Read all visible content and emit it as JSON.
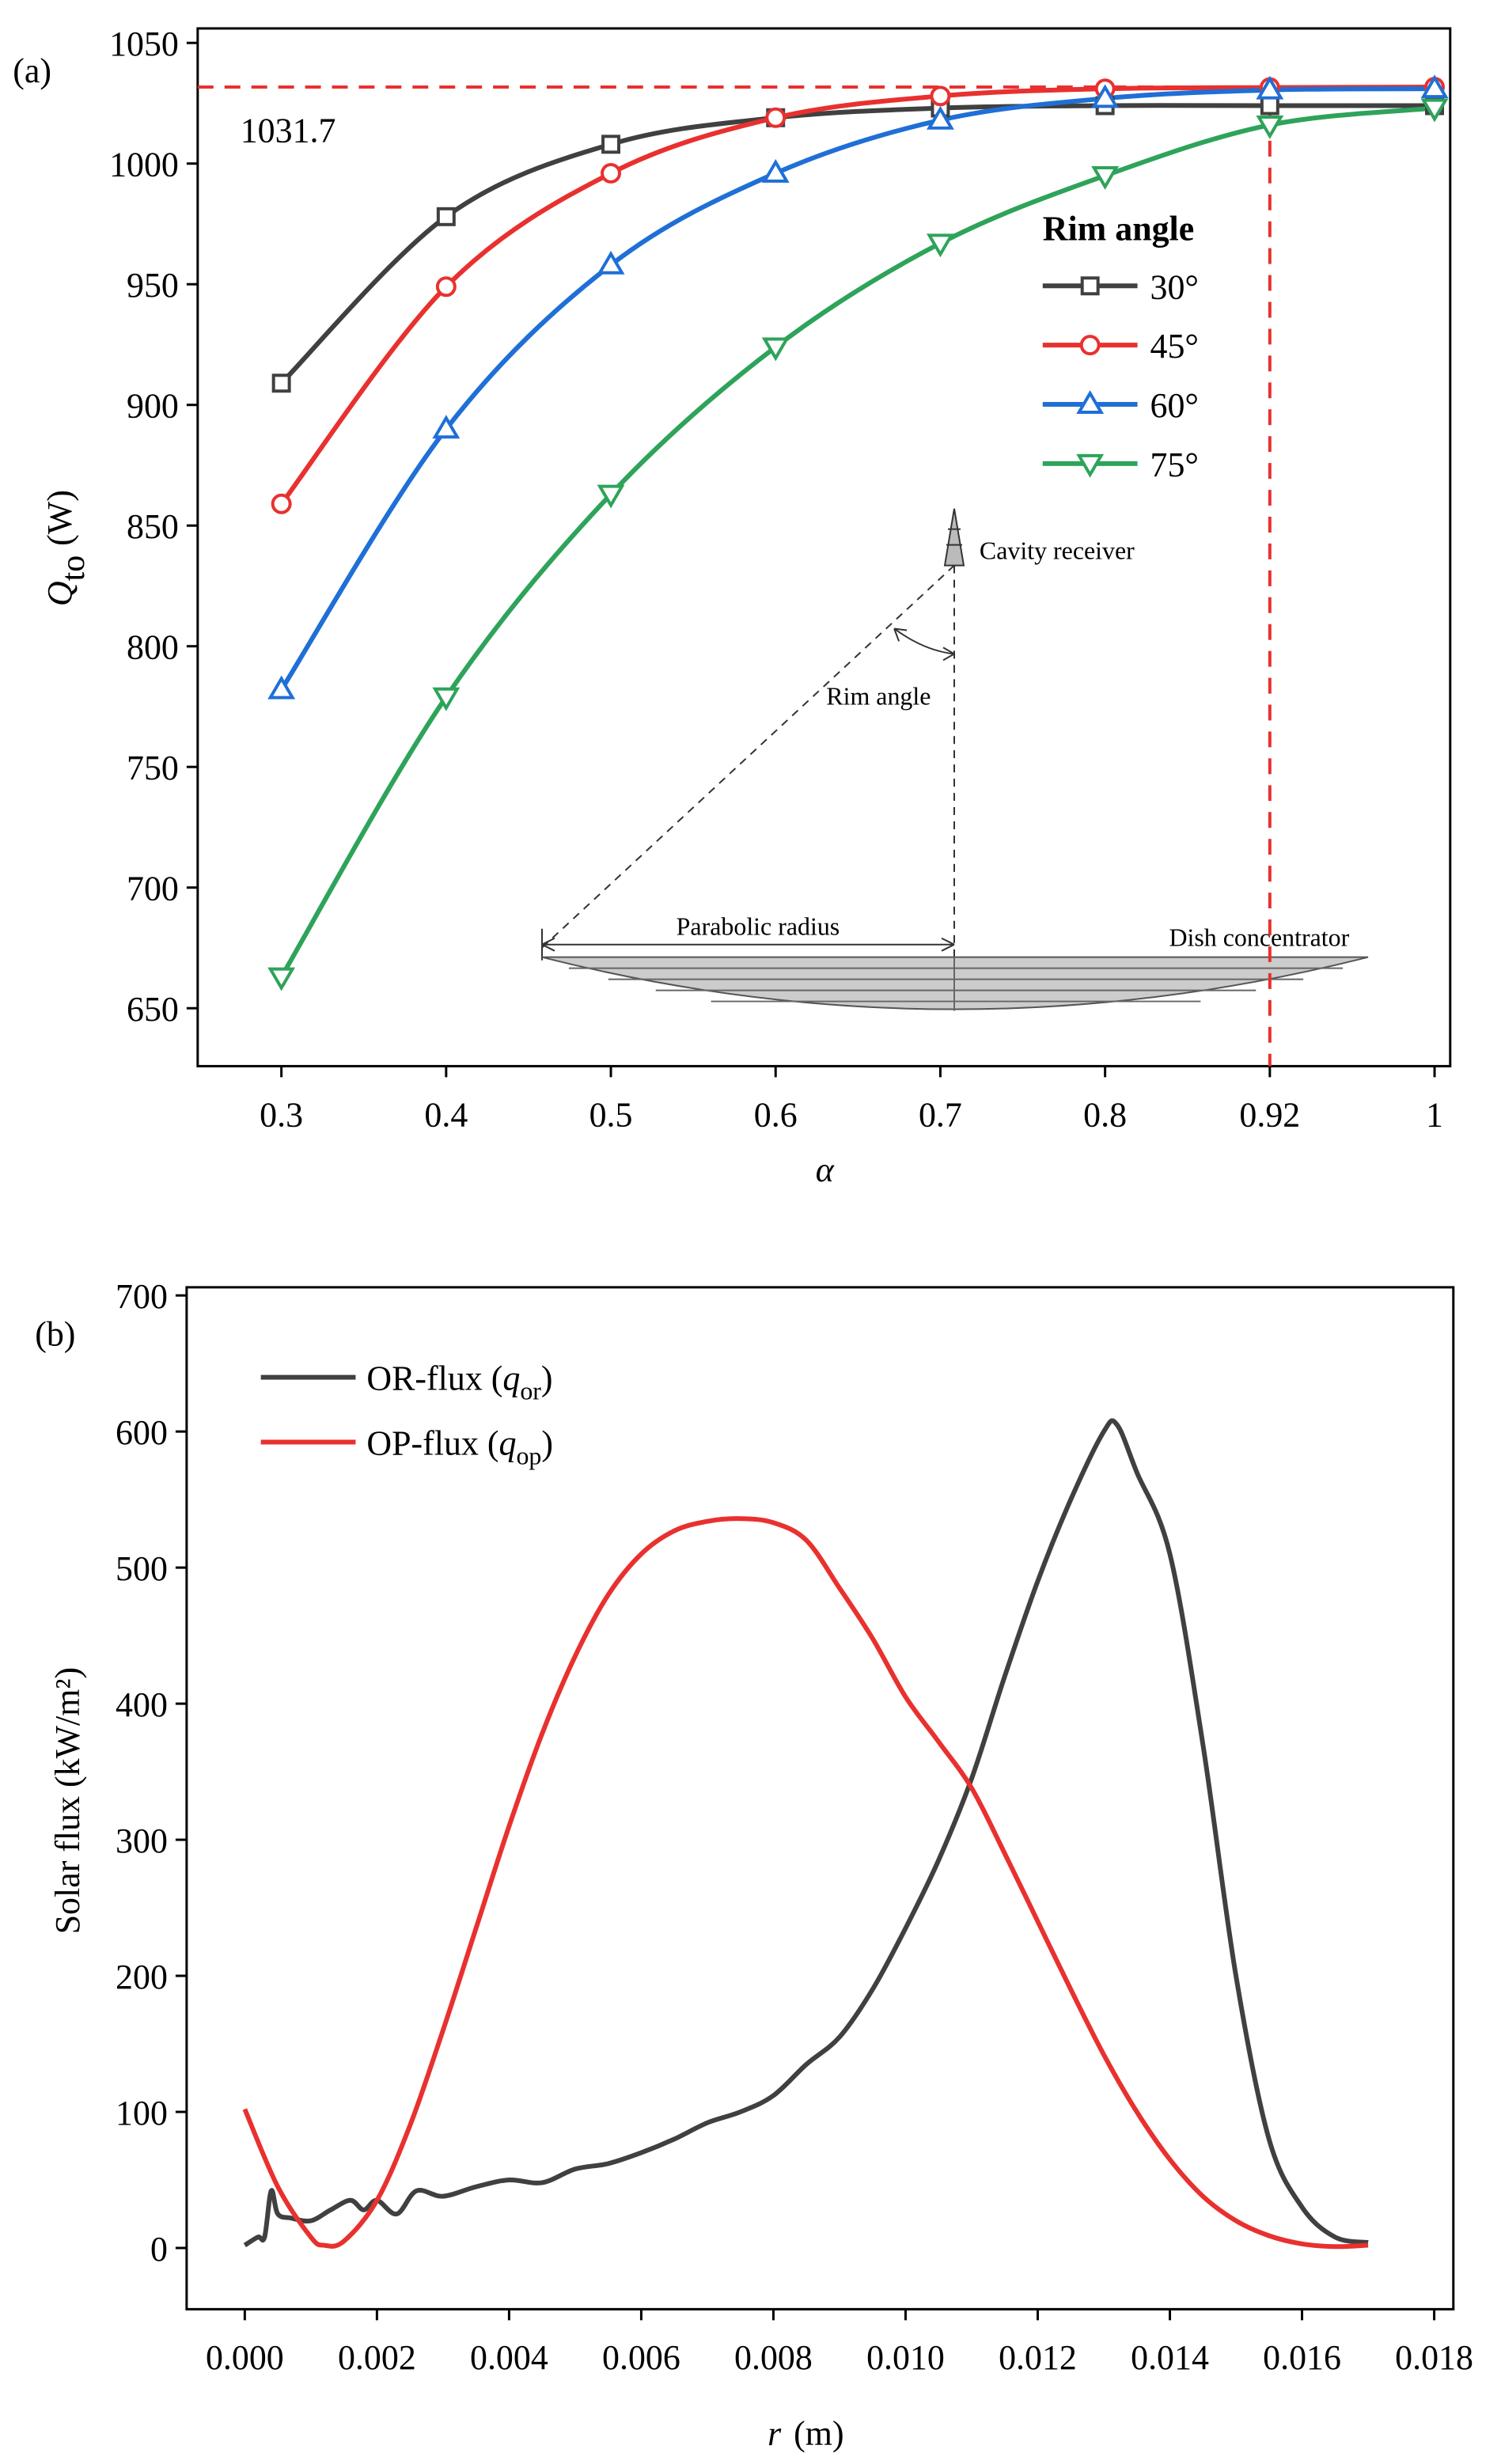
{
  "chart_data": [
    {
      "type": "line",
      "panel": "(a)",
      "categories": [
        "0.3",
        "0.4",
        "0.5",
        "0.6",
        "0.7",
        "0.8",
        "0.92",
        "1"
      ],
      "ylim": [
        626,
        1056
      ],
      "yticks": [
        650,
        700,
        750,
        800,
        850,
        900,
        950,
        1000,
        1050
      ],
      "xlabel": {
        "symbol": "α"
      },
      "ylabel": {
        "symbol": "Q",
        "sub": "to",
        "unit": "(W)"
      },
      "legend_title": "Rim angle",
      "series": [
        {
          "name": "30°",
          "color": "#404040",
          "marker": "square",
          "values": [
            909,
            978,
            1008,
            1019,
            1023,
            1024,
            1024,
            1024
          ]
        },
        {
          "name": "45°",
          "color": "#e8312f",
          "marker": "circle",
          "values": [
            859,
            949,
            996,
            1019,
            1028,
            1031,
            1031.5,
            1031.7
          ]
        },
        {
          "name": "60°",
          "color": "#1f6fd6",
          "marker": "triangle-up",
          "values": [
            782,
            890,
            958,
            996,
            1018,
            1027,
            1030.5,
            1031
          ]
        },
        {
          "name": "75°",
          "color": "#2ea35a",
          "marker": "triangle-down",
          "values": [
            663,
            779,
            863,
            924,
            967,
            995,
            1016,
            1023
          ]
        }
      ],
      "reference": {
        "value": 1031.7,
        "x": "0.92",
        "color": "#e8312f"
      },
      "diagram": {
        "receiver": "Cavity receiver",
        "angle": "Rim angle",
        "radius": "Parabolic radius",
        "dish": "Dish concentrator"
      }
    },
    {
      "type": "line",
      "panel": "(b)",
      "xlim": [
        -0.00088,
        0.01829
      ],
      "ylim": [
        -45,
        706
      ],
      "xticks": [
        {
          "value": 0,
          "label": "0.000"
        },
        {
          "value": 0.002,
          "label": "0.002"
        },
        {
          "value": 0.004,
          "label": "0.004"
        },
        {
          "value": 0.006,
          "label": "0.006"
        },
        {
          "value": 0.008,
          "label": "0.008"
        },
        {
          "value": 0.01,
          "label": "0.010"
        },
        {
          "value": 0.012,
          "label": "0.012"
        },
        {
          "value": 0.014,
          "label": "0.014"
        },
        {
          "value": 0.016,
          "label": "0.016"
        },
        {
          "value": 0.018,
          "label": "0.018"
        }
      ],
      "yticks": [
        0,
        100,
        200,
        300,
        400,
        500,
        600,
        700
      ],
      "xlabel": {
        "symbol": "r",
        "unit": "(m)"
      },
      "ylabel": "Solar flux (kW/m²)",
      "series": [
        {
          "label": [
            "OR-flux (",
            "q",
            "or",
            ")"
          ],
          "color": "#404040",
          "x": [
            0,
            0.0002,
            0.0003,
            0.0004,
            0.0005,
            0.0007,
            0.001,
            0.0013,
            0.0016,
            0.0018,
            0.002,
            0.0023,
            0.0026,
            0.003,
            0.0035,
            0.004,
            0.0045,
            0.005,
            0.0055,
            0.006,
            0.0065,
            0.007,
            0.0075,
            0.008,
            0.0085,
            0.009,
            0.0095,
            0.01,
            0.0105,
            0.011,
            0.0115,
            0.012,
            0.0125,
            0.013,
            0.0132,
            0.0135,
            0.014,
            0.0145,
            0.015,
            0.0155,
            0.016,
            0.0165,
            0.017
          ],
          "values": [
            2,
            8,
            8,
            42,
            25,
            22,
            20,
            28,
            35,
            28,
            35,
            25,
            42,
            38,
            45,
            50,
            48,
            58,
            62,
            70,
            80,
            92,
            100,
            112,
            135,
            155,
            190,
            235,
            285,
            345,
            420,
            490,
            550,
            600,
            605,
            570,
            510,
            370,
            200,
            80,
            30,
            8,
            4
          ]
        },
        {
          "label": [
            "OP-flux (",
            "q",
            "op",
            ")"
          ],
          "color": "#e8312f",
          "x": [
            0,
            0.0005,
            0.001,
            0.0012,
            0.0015,
            0.002,
            0.0025,
            0.003,
            0.0035,
            0.004,
            0.0045,
            0.005,
            0.0055,
            0.006,
            0.0065,
            0.007,
            0.0075,
            0.008,
            0.0085,
            0.009,
            0.0095,
            0.01,
            0.0105,
            0.011,
            0.0115,
            0.012,
            0.0125,
            0.013,
            0.0135,
            0.014,
            0.0145,
            0.015,
            0.0155,
            0.016,
            0.0165,
            0.017
          ],
          "values": [
            102,
            45,
            8,
            2,
            5,
            35,
            90,
            160,
            235,
            310,
            378,
            435,
            480,
            510,
            527,
            534,
            536,
            533,
            520,
            485,
            448,
            405,
            372,
            338,
            290,
            240,
            190,
            142,
            100,
            65,
            38,
            20,
            9,
            3,
            1,
            2
          ]
        }
      ]
    }
  ]
}
